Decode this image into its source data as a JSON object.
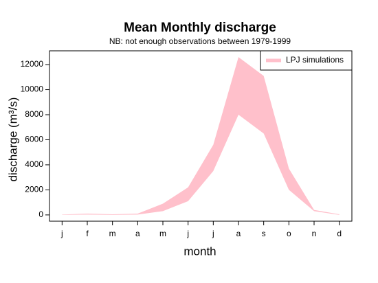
{
  "chart_data": {
    "type": "band",
    "title": "Mean Monthly discharge",
    "subtitle": "NB: not enough observations between 1979-1999",
    "x_label": "month",
    "y_label": "discharge (m³/s)",
    "categories": [
      "j",
      "f",
      "m",
      "a",
      "m",
      "j",
      "j",
      "a",
      "s",
      "o",
      "n",
      "d"
    ],
    "series": [
      {
        "name": "LPJ simulations",
        "color": "#ffc0cb",
        "upper": [
          30,
          100,
          50,
          100,
          900,
          2200,
          5600,
          12600,
          11100,
          3700,
          400,
          50
        ],
        "lower": [
          0,
          30,
          0,
          30,
          300,
          1100,
          3500,
          8000,
          6500,
          2000,
          300,
          0
        ]
      }
    ],
    "ylim": [
      -500,
      13100
    ],
    "yticks": [
      0,
      2000,
      4000,
      6000,
      8000,
      10000,
      12000
    ],
    "legend": "top-right"
  }
}
